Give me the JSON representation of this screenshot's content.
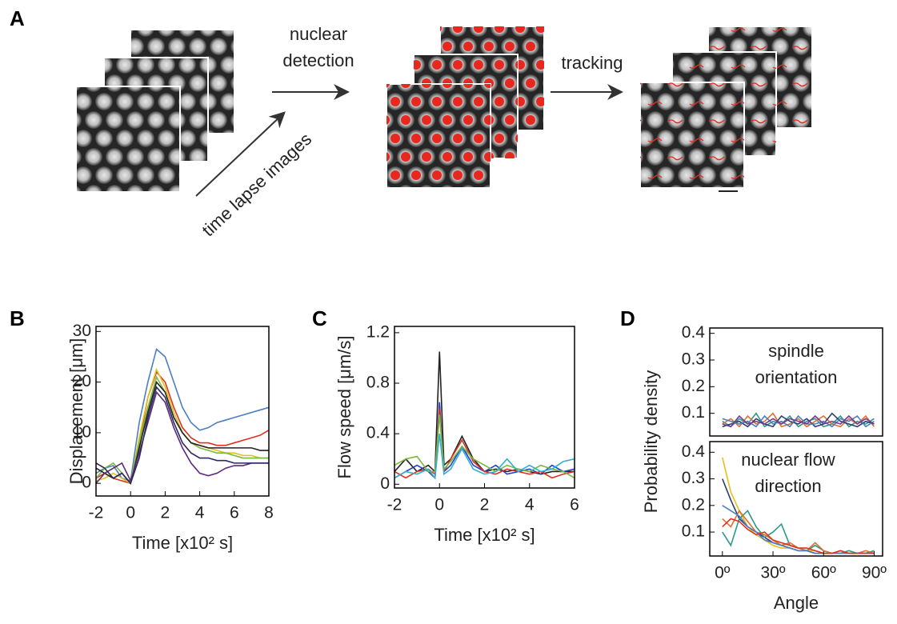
{
  "figure_a": {
    "label": "A",
    "steps": [
      "nuclear detection",
      "time lapse images",
      "tracking"
    ]
  },
  "chart_data": [
    {
      "type": "line",
      "label": "B",
      "x_label": "Time [x10² s]",
      "y_label": "Displacement [μm]",
      "xlim": [
        -2,
        8
      ],
      "xticks": [
        -2,
        0,
        2,
        4,
        6,
        8
      ],
      "ylim": [
        -2.5,
        31
      ],
      "yticks": [
        0,
        10,
        20,
        30
      ],
      "x": [
        -2,
        -1.5,
        -1,
        -0.5,
        0,
        0.5,
        1,
        1.5,
        2,
        2.5,
        3,
        3.5,
        4,
        4.5,
        5,
        5.5,
        6,
        6.5,
        7,
        7.5,
        8
      ],
      "series": [
        {
          "color": "#4a7fc1",
          "values": [
            2,
            3,
            3.5,
            1,
            0.5,
            12,
            20,
            26.5,
            25,
            20,
            15,
            12,
            10.5,
            11,
            12,
            12.5,
            13,
            13.5,
            14,
            14.5,
            15
          ]
        },
        {
          "color": "#e03020",
          "values": [
            1,
            2,
            1,
            0.5,
            0,
            8,
            17,
            22,
            20,
            15,
            11,
            9,
            8,
            8,
            7.5,
            7.5,
            8,
            8.5,
            9,
            9.5,
            10.5
          ]
        },
        {
          "color": "#e0c020",
          "values": [
            0.5,
            1,
            2,
            1,
            0,
            9,
            17,
            22.5,
            19,
            14,
            10,
            8,
            7.5,
            7,
            6.5,
            6,
            6,
            5.5,
            5.5,
            5,
            5
          ]
        },
        {
          "color": "#7ab83a",
          "values": [
            1,
            3,
            4,
            2,
            0,
            8,
            15,
            21,
            18,
            13,
            10,
            8,
            7,
            6.5,
            6,
            6,
            5.5,
            5,
            5,
            5,
            5
          ]
        },
        {
          "color": "#222222",
          "values": [
            3,
            2,
            1,
            2,
            0,
            7,
            14,
            20,
            18,
            13,
            10,
            8,
            7.5,
            7,
            7,
            7,
            7,
            7,
            7,
            6.5,
            6.5
          ]
        },
        {
          "color": "#5a2a7a",
          "values": [
            0,
            2,
            3,
            4,
            0.5,
            6,
            12,
            18,
            16,
            11,
            7,
            4,
            2,
            1.5,
            2,
            3,
            3.5,
            3.5,
            4,
            4,
            4
          ]
        },
        {
          "color": "#2a2a60",
          "values": [
            4,
            3,
            1,
            2,
            0,
            5,
            13,
            19,
            17,
            12,
            8,
            6,
            5,
            5,
            4.5,
            4.5,
            4,
            4,
            4,
            4,
            4
          ]
        }
      ]
    },
    {
      "type": "line",
      "label": "C",
      "x_label": "Time [x10² s]",
      "y_label": "Flow speed [μm/s]",
      "xlim": [
        -2,
        6
      ],
      "xticks": [
        -2,
        0,
        2,
        4,
        6
      ],
      "ylim": [
        -0.03,
        1.25
      ],
      "yticks": [
        0,
        0.4,
        0.8,
        1.2
      ],
      "x": [
        -2,
        -1.5,
        -1,
        -0.5,
        -0.2,
        0,
        0.2,
        0.5,
        1,
        1.5,
        2,
        2.5,
        3,
        3.5,
        4,
        4.5,
        5,
        5.5,
        6
      ],
      "series": [
        {
          "color": "#222222",
          "values": [
            0.1,
            0.2,
            0.1,
            0.15,
            0.1,
            1.05,
            0.15,
            0.2,
            0.38,
            0.2,
            0.1,
            0.12,
            0.1,
            0.12,
            0.1,
            0.08,
            0.1,
            0.1,
            0.1
          ]
        },
        {
          "color": "#2040d0",
          "values": [
            0.05,
            0.1,
            0.15,
            0.1,
            0.05,
            0.65,
            0.1,
            0.15,
            0.3,
            0.15,
            0.1,
            0.15,
            0.08,
            0.1,
            0.12,
            0.08,
            0.15,
            0.1,
            0.12
          ]
        },
        {
          "color": "#e03020",
          "values": [
            0.1,
            0.05,
            0.1,
            0.12,
            0.08,
            0.6,
            0.1,
            0.2,
            0.35,
            0.18,
            0.1,
            0.08,
            0.12,
            0.1,
            0.08,
            0.1,
            0.05,
            0.08,
            0.1
          ]
        },
        {
          "color": "#7ab83a",
          "values": [
            0.15,
            0.2,
            0.22,
            0.1,
            0.1,
            0.55,
            0.12,
            0.18,
            0.3,
            0.2,
            0.15,
            0.1,
            0.15,
            0.12,
            0.1,
            0.15,
            0.12,
            0.1,
            0.05
          ]
        },
        {
          "color": "#30b0d0",
          "values": [
            0.05,
            0.1,
            0.08,
            0.12,
            0.05,
            0.4,
            0.08,
            0.12,
            0.28,
            0.12,
            0.08,
            0.1,
            0.2,
            0.1,
            0.15,
            0.1,
            0.12,
            0.18,
            0.2
          ]
        }
      ]
    },
    {
      "type": "line",
      "label": "D",
      "y_label": "Probability density",
      "annotation": "spindle orientation",
      "xlim": [
        -7.5,
        95
      ],
      "ylim": [
        0.015,
        0.42
      ],
      "yticks": [
        0.1,
        0.2,
        0.3,
        0.4
      ],
      "x": [
        0,
        5,
        10,
        15,
        20,
        25,
        30,
        35,
        40,
        45,
        50,
        55,
        60,
        65,
        70,
        75,
        80,
        85,
        90
      ],
      "series": [
        {
          "color": "#2a9a8a",
          "values": [
            0.07,
            0.05,
            0.08,
            0.06,
            0.1,
            0.05,
            0.07,
            0.06,
            0.09,
            0.05,
            0.07,
            0.08,
            0.05,
            0.06,
            0.09,
            0.05,
            0.07,
            0.06,
            0.08
          ]
        },
        {
          "color": "#e07030",
          "values": [
            0.06,
            0.08,
            0.05,
            0.09,
            0.06,
            0.07,
            0.1,
            0.05,
            0.06,
            0.08,
            0.05,
            0.07,
            0.09,
            0.06,
            0.05,
            0.08,
            0.06,
            0.09,
            0.05
          ]
        },
        {
          "color": "#2c3e70",
          "values": [
            0.05,
            0.06,
            0.07,
            0.05,
            0.08,
            0.06,
            0.05,
            0.09,
            0.07,
            0.06,
            0.08,
            0.05,
            0.06,
            0.1,
            0.07,
            0.06,
            0.05,
            0.07,
            0.06
          ]
        },
        {
          "color": "#4a7fc1",
          "values": [
            0.08,
            0.07,
            0.06,
            0.07,
            0.05,
            0.09,
            0.06,
            0.07,
            0.05,
            0.09,
            0.06,
            0.06,
            0.07,
            0.05,
            0.08,
            0.07,
            0.09,
            0.05,
            0.07
          ]
        },
        {
          "color": "#7a3a8a",
          "values": [
            0.06,
            0.05,
            0.09,
            0.06,
            0.07,
            0.06,
            0.08,
            0.06,
            0.08,
            0.07,
            0.06,
            0.09,
            0.06,
            0.07,
            0.06,
            0.09,
            0.06,
            0.08,
            0.06
          ]
        }
      ]
    },
    {
      "type": "line",
      "x_label": "Angle",
      "annotation": "nuclear flow direction",
      "xlim": [
        -7.5,
        95
      ],
      "xticks": [
        {
          "value": 0,
          "label": "0º"
        },
        {
          "value": 30,
          "label": "30º"
        },
        {
          "value": 60,
          "label": "60º"
        },
        {
          "value": 90,
          "label": "90º"
        }
      ],
      "ylim": [
        0.01,
        0.44
      ],
      "yticks": [
        0.1,
        0.2,
        0.3,
        0.4
      ],
      "x": [
        0,
        5,
        10,
        15,
        20,
        25,
        30,
        35,
        40,
        45,
        50,
        55,
        60,
        65,
        70,
        75,
        80,
        85,
        90
      ],
      "series": [
        {
          "color": "#e6c01a",
          "values": [
            0.38,
            0.25,
            0.18,
            0.12,
            0.09,
            0.07,
            0.05,
            0.04,
            0.04,
            0.03,
            0.03,
            0.03,
            0.02,
            0.02,
            0.02,
            0.02,
            0.02,
            0.02,
            0.03
          ]
        },
        {
          "color": "#2c3e70",
          "values": [
            0.3,
            0.22,
            0.15,
            0.12,
            0.1,
            0.08,
            0.06,
            0.05,
            0.04,
            0.03,
            0.03,
            0.02,
            0.02,
            0.02,
            0.02,
            0.02,
            0.02,
            0.02,
            0.02
          ]
        },
        {
          "color": "#2a9a8a",
          "values": [
            0.1,
            0.05,
            0.15,
            0.18,
            0.12,
            0.08,
            0.1,
            0.13,
            0.05,
            0.04,
            0.03,
            0.05,
            0.03,
            0.02,
            0.02,
            0.03,
            0.02,
            0.02,
            0.03
          ]
        },
        {
          "color": "#e07030",
          "values": [
            0.15,
            0.12,
            0.18,
            0.14,
            0.1,
            0.09,
            0.07,
            0.05,
            0.06,
            0.04,
            0.03,
            0.06,
            0.03,
            0.02,
            0.03,
            0.02,
            0.02,
            0.03,
            0.02
          ]
        },
        {
          "color": "#4a7fc1",
          "values": [
            0.2,
            0.18,
            0.16,
            0.12,
            0.1,
            0.07,
            0.06,
            0.05,
            0.04,
            0.03,
            0.03,
            0.02,
            0.02,
            0.02,
            0.02,
            0.02,
            0.02,
            0.02,
            0.02
          ]
        },
        {
          "color": "#e03020",
          "values": [
            0.12,
            0.15,
            0.14,
            0.11,
            0.09,
            0.1,
            0.07,
            0.06,
            0.05,
            0.04,
            0.04,
            0.03,
            0.02,
            0.02,
            0.03,
            0.02,
            0.02,
            0.02,
            0.02
          ]
        }
      ]
    }
  ]
}
